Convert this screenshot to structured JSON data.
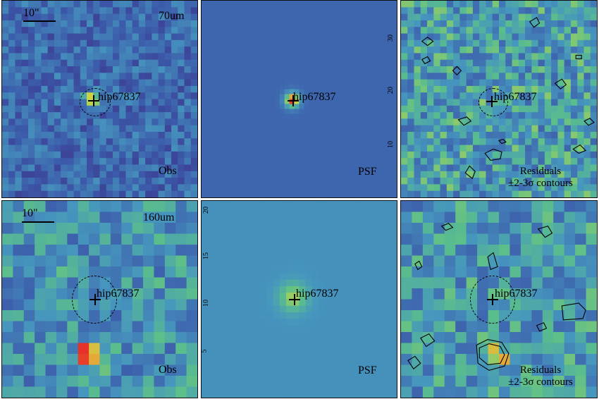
{
  "figure": {
    "row1": {
      "scale_label": "10\"",
      "band_label": "70um",
      "source_name": "hip67837",
      "obs_label": "Obs",
      "psf_label": "PSF",
      "resid_label_1": "Residuals",
      "resid_label_2": "±2-3σ contours",
      "psf_ticks": [
        "30",
        "20",
        "10"
      ]
    },
    "row2": {
      "scale_label": "10\"",
      "band_label": "160um",
      "source_name": "hip67837",
      "obs_label": "Obs",
      "psf_label": "PSF",
      "resid_label_1": "Residuals",
      "resid_label_2": "±2-3σ contours",
      "psf_ticks": [
        "20",
        "15",
        "10",
        "5"
      ]
    },
    "colors": {
      "low": "#3b1f7a",
      "mid": "#3f8fbf",
      "high": "#d9d93a",
      "peak": "#e8402a"
    }
  }
}
